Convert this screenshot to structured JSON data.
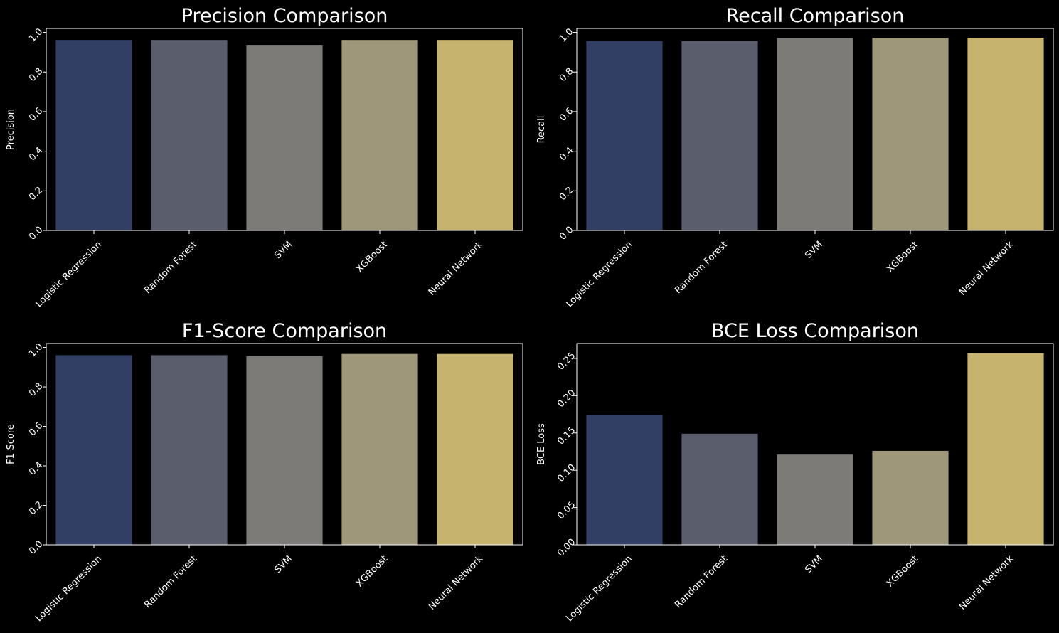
{
  "figure": {
    "background": "#000000",
    "text_color": "#ffffff"
  },
  "bar_colors": [
    "#323f64",
    "#5a5d6b",
    "#7c7b78",
    "#9e9779",
    "#c6b46e"
  ],
  "chart_data": [
    {
      "type": "bar",
      "title": "Precision Comparison",
      "xlabel": "",
      "ylabel": "Precision",
      "categories": [
        "Logistic Regression",
        "Random Forest",
        "SVM",
        "XGBoost",
        "Neural Network"
      ],
      "values": [
        0.962,
        0.962,
        0.937,
        0.962,
        0.962
      ],
      "ylim": [
        0,
        1.02
      ],
      "yticks": [
        "0.0",
        "0.2",
        "0.4",
        "0.6",
        "0.8",
        "1.0"
      ],
      "grid": false,
      "legend": "none"
    },
    {
      "type": "bar",
      "title": "Recall Comparison",
      "xlabel": "",
      "ylabel": "Recall",
      "categories": [
        "Logistic Regression",
        "Random Forest",
        "SVM",
        "XGBoost",
        "Neural Network"
      ],
      "values": [
        0.957,
        0.957,
        0.973,
        0.973,
        0.973
      ],
      "ylim": [
        0,
        1.02
      ],
      "yticks": [
        "0.0",
        "0.2",
        "0.4",
        "0.6",
        "0.8",
        "1.0"
      ],
      "grid": false,
      "legend": "none"
    },
    {
      "type": "bar",
      "title": "F1-Score Comparison",
      "xlabel": "",
      "ylabel": "F1-Score",
      "categories": [
        "Logistic Regression",
        "Random Forest",
        "SVM",
        "XGBoost",
        "Neural Network"
      ],
      "values": [
        0.961,
        0.961,
        0.955,
        0.967,
        0.967
      ],
      "ylim": [
        0,
        1.02
      ],
      "yticks": [
        "0.0",
        "0.2",
        "0.4",
        "0.6",
        "0.8",
        "1.0"
      ],
      "grid": false,
      "legend": "none"
    },
    {
      "type": "bar",
      "title": "BCE Loss Comparison",
      "xlabel": "",
      "ylabel": "BCE Loss",
      "categories": [
        "Logistic Regression",
        "Random Forest",
        "SVM",
        "XGBoost",
        "Neural Network"
      ],
      "values": [
        0.174,
        0.149,
        0.121,
        0.126,
        0.257
      ],
      "ylim": [
        0,
        0.27
      ],
      "yticks": [
        "0.00",
        "0.05",
        "0.10",
        "0.15",
        "0.20",
        "0.25"
      ],
      "grid": false,
      "legend": "none"
    }
  ]
}
